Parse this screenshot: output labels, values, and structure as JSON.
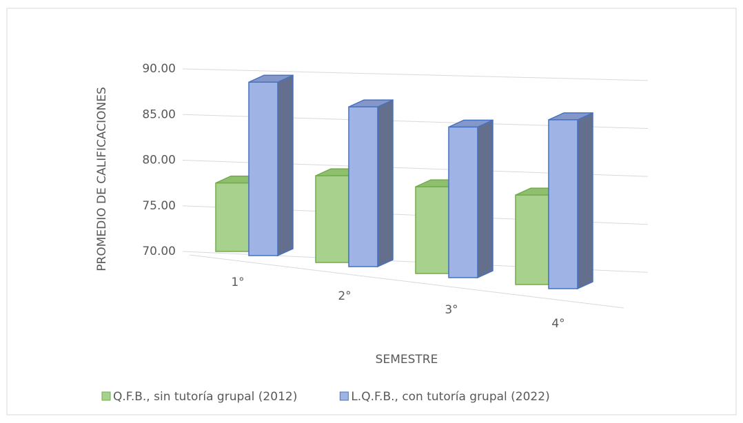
{
  "chart_data": {
    "type": "bar3d",
    "categories": [
      "1°",
      "2°",
      "3°",
      "4°"
    ],
    "series": [
      {
        "name": "Q.F.B., sin tutoría grupal (2012)",
        "color": "#a9d18e",
        "values": [
          77.5,
          79.5,
          79.5,
          79.8
        ]
      },
      {
        "name": "L.Q.F.B., con tutoría grupal (2022)",
        "color": "#9fb3e4",
        "values": [
          89.0,
          87.5,
          86.5,
          88.5
        ]
      }
    ],
    "x_label": "SEMESTRE",
    "y_label": "PROMEDIO DE CALIFICACIONES",
    "ylim": [
      70,
      90
    ],
    "yticks": [
      {
        "value": 70,
        "label": "70.00"
      },
      {
        "value": 75,
        "label": "75.00"
      },
      {
        "value": 80,
        "label": "80.00"
      },
      {
        "value": 85,
        "label": "85.00"
      },
      {
        "value": 90,
        "label": "90.00"
      }
    ],
    "grid": true,
    "legend": "bottom"
  }
}
